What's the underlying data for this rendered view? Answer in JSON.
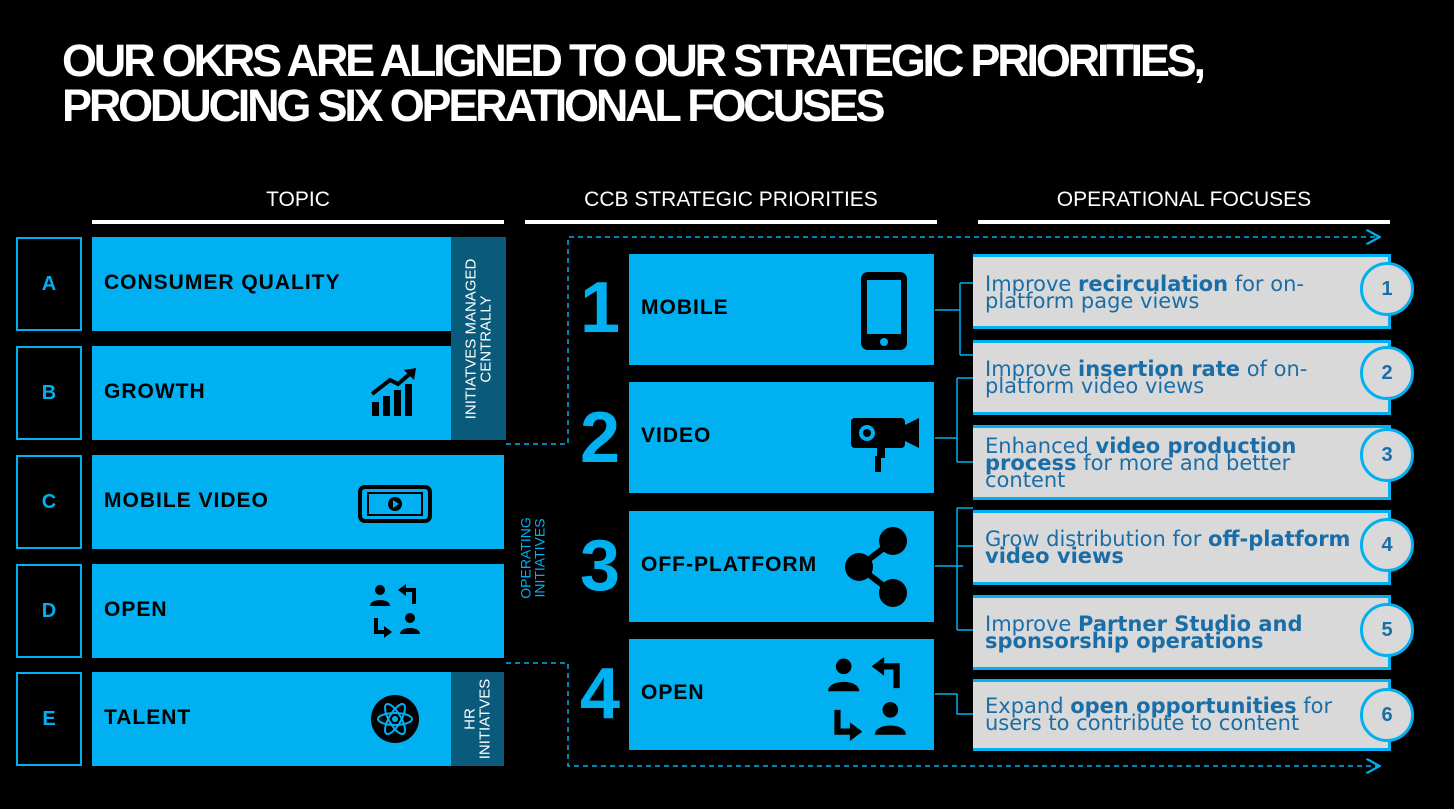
{
  "title": {
    "line1": "OUR OKRS ARE ALIGNED TO OUR STRATEGIC PRIORITIES,",
    "line2": "PRODUCING SIX OPERATIONAL FOCUSES"
  },
  "columns": {
    "topic": "TOPIC",
    "priorities": "CCB STRATEGIC PRIORITIES",
    "focuses": "OPERATIONAL FOCUSES"
  },
  "topics": [
    {
      "letter": "A",
      "label": "CONSUMER QUALITY",
      "icon": "star-chat-icon"
    },
    {
      "letter": "B",
      "label": "GROWTH",
      "icon": "growth-chart-icon"
    },
    {
      "letter": "C",
      "label": "MOBILE VIDEO",
      "icon": "mobile-video-icon"
    },
    {
      "letter": "D",
      "label": "OPEN",
      "icon": "people-exchange-icon"
    },
    {
      "letter": "E",
      "label": "TALENT",
      "icon": "atom-icon"
    }
  ],
  "groups": {
    "central_line1": "INITIATVES MANAGED",
    "central_line2": "CENTRALLY",
    "operating_line1": "OPERATING",
    "operating_line2": "INITIATIVES",
    "hr_line1": "HR",
    "hr_line2": "INITIATVES"
  },
  "priorities": [
    {
      "number": "1",
      "label": "MOBILE",
      "icon": "smartphone-icon"
    },
    {
      "number": "2",
      "label": "VIDEO",
      "icon": "video-camera-icon"
    },
    {
      "number": "3",
      "label": "OFF-PLATFORM",
      "icon": "share-icon"
    },
    {
      "number": "4",
      "label": "OPEN",
      "icon": "people-exchange-icon"
    }
  ],
  "focuses": [
    {
      "number": "1",
      "parts": [
        [
          "Improve ",
          false
        ],
        [
          "recirculation",
          true
        ],
        [
          " for on-platform page views",
          false
        ]
      ]
    },
    {
      "number": "2",
      "parts": [
        [
          "Improve ",
          false
        ],
        [
          "insertion rate",
          true
        ],
        [
          " of on-platform video views",
          false
        ]
      ]
    },
    {
      "number": "3",
      "parts": [
        [
          "Enhanced ",
          false
        ],
        [
          "video production process",
          true
        ],
        [
          " for more and better content",
          false
        ]
      ]
    },
    {
      "number": "4",
      "parts": [
        [
          "Grow distribution for ",
          false
        ],
        [
          "off-platform video views",
          true
        ]
      ]
    },
    {
      "number": "5",
      "parts": [
        [
          "Improve ",
          false
        ],
        [
          "Partner Studio and sponsorship operations",
          true
        ]
      ]
    },
    {
      "number": "6",
      "parts": [
        [
          "Expand ",
          false
        ],
        [
          "open opportunities",
          true
        ],
        [
          " for users to contribute to content",
          false
        ]
      ]
    }
  ],
  "colors": {
    "accent": "#00b0f0",
    "dark_tab": "#0a5a7c",
    "focus_bg": "#d9d9d9",
    "focus_text": "#1a6ea8"
  }
}
